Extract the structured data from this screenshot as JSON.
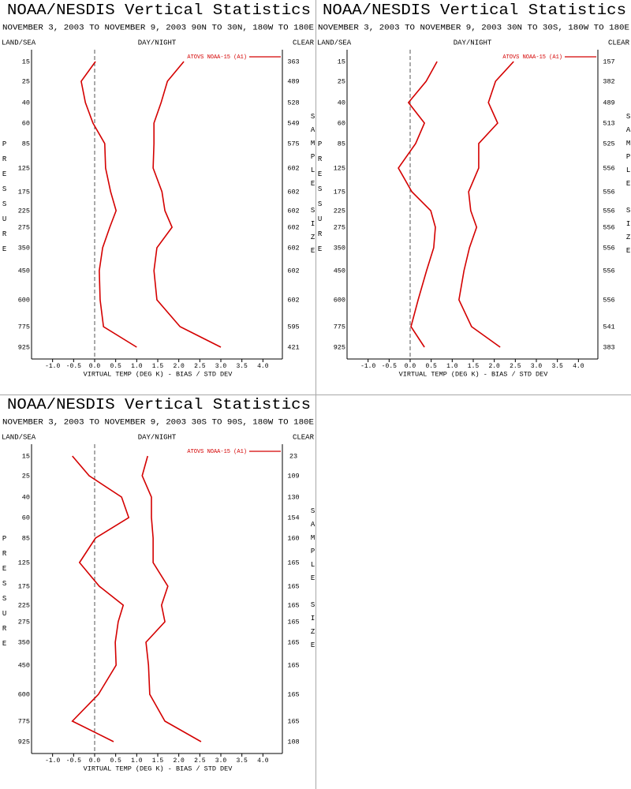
{
  "chart_data": [
    {
      "type": "line",
      "title": "NOAA/NESDIS Vertical Statistics",
      "subtitle": "NOVEMBER 3, 2003 TO NOVEMBER 9, 2003 90N TO 30N, 180W TO 180E",
      "land_sea": "LAND/SEA",
      "day_night": "DAY/NIGHT",
      "clear": "CLEAR",
      "ylabel": "PRESSURE",
      "y2label": "SAMPLE SIZE",
      "xlabel": "VIRTUAL TEMP (DEG K) - BIAS / STD DEV",
      "categories": [
        15,
        25,
        40,
        60,
        85,
        125,
        175,
        225,
        275,
        350,
        450,
        600,
        775,
        925
      ],
      "series": [
        {
          "name": "ATOVS NOAA-15 (A1)",
          "color": "#d40000",
          "bias": [
            0.02,
            -0.32,
            -0.22,
            -0.04,
            0.24,
            0.26,
            0.38,
            0.51,
            0.36,
            0.19,
            0.11,
            0.13,
            0.21,
            1.0
          ],
          "std_dev": [
            2.12,
            1.73,
            1.58,
            1.41,
            1.41,
            1.39,
            1.6,
            1.67,
            1.84,
            1.48,
            1.41,
            1.48,
            2.03,
            3.0
          ]
        }
      ],
      "sample_size": [
        363,
        489,
        528,
        549,
        575,
        602,
        602,
        602,
        602,
        602,
        602,
        602,
        595,
        421
      ],
      "xlim": [
        -1.5,
        4.5
      ],
      "xticks": [
        {
          "value": -1,
          "label": "-1.0"
        },
        {
          "value": -0.5,
          "label": "-0.5"
        },
        {
          "value": 0,
          "label": "0.0"
        },
        {
          "value": 0.5,
          "label": "0.5"
        },
        {
          "value": 1,
          "label": "1.0"
        },
        {
          "value": 1.5,
          "label": "1.5"
        },
        {
          "value": 2,
          "label": "2.0"
        },
        {
          "value": 2.5,
          "label": "2.5"
        },
        {
          "value": 3,
          "label": "3.0"
        },
        {
          "value": 3.5,
          "label": "3.5"
        },
        {
          "value": 4,
          "label": "4.0"
        }
      ],
      "legend": "upper right",
      "grid": false
    },
    {
      "type": "line",
      "title": "NOAA/NESDIS Vertical Statistics",
      "subtitle": "NOVEMBER 3, 2003 TO NOVEMBER 9, 2003 30N TO 30S, 180W TO 180E",
      "land_sea": "LAND/SEA",
      "day_night": "DAY/NIGHT",
      "clear": "CLEAR",
      "ylabel": "PRESSURE",
      "y2label": "SAMPLE SIZE",
      "xlabel": "VIRTUAL TEMP (DEG K) - BIAS / STD DEV",
      "categories": [
        15,
        25,
        40,
        60,
        85,
        125,
        175,
        225,
        275,
        350,
        450,
        600,
        775,
        925
      ],
      "series": [
        {
          "name": "ATOVS NOAA-15 (A1)",
          "color": "#d40000",
          "bias": [
            0.64,
            0.38,
            -0.04,
            0.34,
            0.13,
            -0.28,
            0.04,
            0.49,
            0.6,
            0.56,
            0.39,
            0.19,
            0.02,
            0.34
          ],
          "std_dev": [
            2.46,
            2.03,
            1.86,
            2.08,
            1.63,
            1.63,
            1.39,
            1.44,
            1.58,
            1.41,
            1.28,
            1.16,
            1.46,
            2.14
          ]
        }
      ],
      "sample_size": [
        157,
        382,
        489,
        513,
        525,
        556,
        556,
        556,
        556,
        556,
        556,
        556,
        541,
        383
      ],
      "xlim": [
        -1.5,
        4.5
      ],
      "xticks": [
        {
          "value": -1,
          "label": "-1.0"
        },
        {
          "value": -0.5,
          "label": "-0.5"
        },
        {
          "value": 0,
          "label": "0.0"
        },
        {
          "value": 0.5,
          "label": "0.5"
        },
        {
          "value": 1,
          "label": "1.0"
        },
        {
          "value": 1.5,
          "label": "1.5"
        },
        {
          "value": 2,
          "label": "2.0"
        },
        {
          "value": 2.5,
          "label": "2.5"
        },
        {
          "value": 3,
          "label": "3.0"
        },
        {
          "value": 3.5,
          "label": "3.5"
        },
        {
          "value": 4,
          "label": "4.0"
        }
      ],
      "legend": "upper right",
      "grid": false
    },
    {
      "type": "line",
      "title": "NOAA/NESDIS Vertical Statistics",
      "subtitle": "NOVEMBER 3, 2003 TO NOVEMBER 9, 2003 30S TO 90S, 180W TO 180E",
      "land_sea": "LAND/SEA",
      "day_night": "DAY/NIGHT",
      "clear": "CLEAR",
      "ylabel": "PRESSURE",
      "y2label": "SAMPLE SIZE",
      "xlabel": "VIRTUAL TEMP (DEG K) - BIAS / STD DEV",
      "categories": [
        15,
        25,
        40,
        60,
        85,
        125,
        175,
        225,
        275,
        350,
        450,
        600,
        775,
        925
      ],
      "series": [
        {
          "name": "ATOVS NOAA-15 (A1)",
          "color": "#d40000",
          "bias": [
            -0.53,
            -0.13,
            0.64,
            0.81,
            0.02,
            -0.36,
            0.11,
            0.68,
            0.56,
            0.49,
            0.51,
            0.09,
            -0.53,
            0.45
          ],
          "std_dev": [
            1.26,
            1.13,
            1.35,
            1.35,
            1.39,
            1.39,
            1.74,
            1.59,
            1.67,
            1.22,
            1.28,
            1.31,
            1.67,
            2.53
          ]
        }
      ],
      "sample_size": [
        23,
        109,
        130,
        154,
        160,
        165,
        165,
        165,
        165,
        165,
        165,
        165,
        165,
        108
      ],
      "xlim": [
        -1.5,
        4.5
      ],
      "xticks": [
        {
          "value": -1,
          "label": "-1.0"
        },
        {
          "value": -0.5,
          "label": "-0.5"
        },
        {
          "value": 0,
          "label": "0.0"
        },
        {
          "value": 0.5,
          "label": "0.5"
        },
        {
          "value": 1,
          "label": "1.0"
        },
        {
          "value": 1.5,
          "label": "1.5"
        },
        {
          "value": 2,
          "label": "2.0"
        },
        {
          "value": 2.5,
          "label": "2.5"
        },
        {
          "value": 3,
          "label": "3.0"
        },
        {
          "value": 3.5,
          "label": "3.5"
        },
        {
          "value": 4,
          "label": "4.0"
        }
      ],
      "legend": "upper right",
      "grid": false
    }
  ]
}
